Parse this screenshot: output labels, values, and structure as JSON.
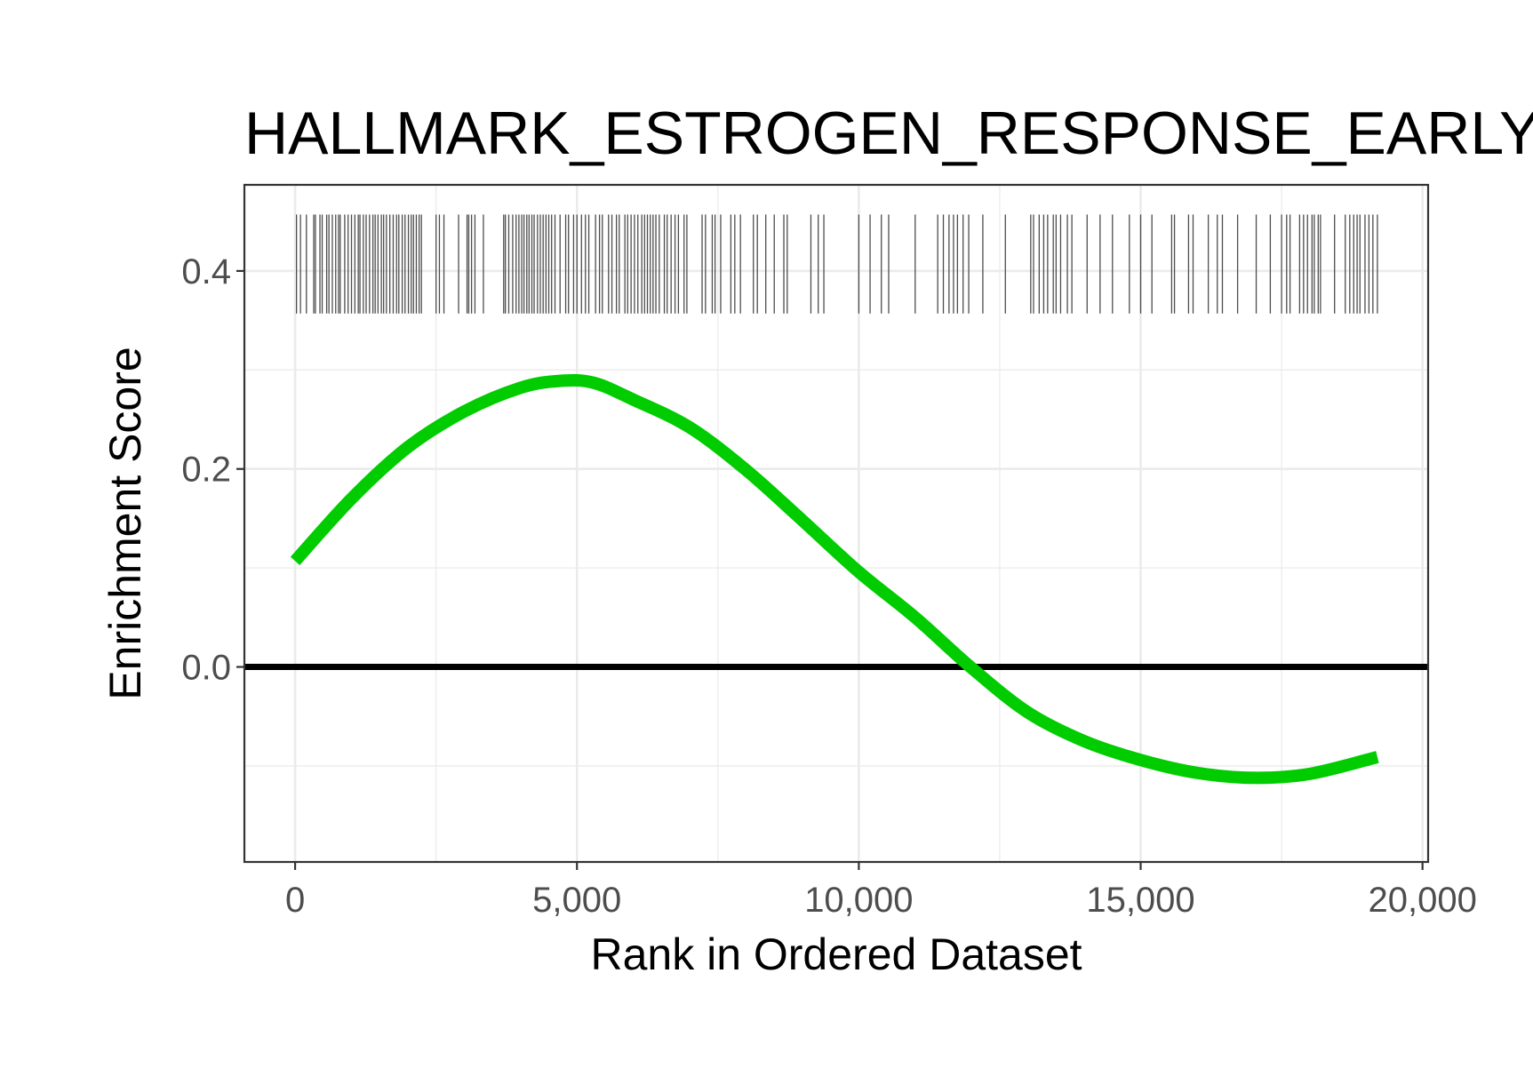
{
  "chart_data": {
    "type": "line",
    "title": "HALLMARK_ESTROGEN_RESPONSE_EARLY",
    "xlabel": "Rank in Ordered Dataset",
    "ylabel": "Enrichment Score",
    "xlim": [
      -900,
      20100
    ],
    "ylim": [
      -0.197,
      0.487
    ],
    "x_ticks": [
      0,
      5000,
      10000,
      15000,
      20000
    ],
    "x_tick_labels": [
      "0",
      "5,000",
      "10,000",
      "15,000",
      "20,000"
    ],
    "y_ticks": [
      0.0,
      0.2,
      0.4
    ],
    "y_tick_labels": [
      "0.0",
      "0.2",
      "0.4"
    ],
    "grid": true,
    "zero_line": 0.0,
    "series": [
      {
        "color": "#00cc00",
        "x": [
          0,
          1000,
          2000,
          3000,
          4000,
          4700,
          5300,
          6000,
          7000,
          8000,
          9000,
          10000,
          11000,
          12000,
          13000,
          14000,
          15000,
          16000,
          17000,
          18000,
          19200
        ],
        "y": [
          0.107,
          0.17,
          0.222,
          0.258,
          0.282,
          0.289,
          0.287,
          0.27,
          0.242,
          0.199,
          0.148,
          0.096,
          0.05,
          -0.001,
          -0.046,
          -0.075,
          -0.094,
          -0.107,
          -0.112,
          -0.108,
          -0.091
        ]
      }
    ],
    "rug": {
      "color": "#4d4d4d",
      "y_range": [
        0.357,
        0.457
      ],
      "positions": [
        25,
        95,
        200,
        330,
        360,
        440,
        480,
        560,
        600,
        660,
        720,
        770,
        800,
        880,
        940,
        1000,
        1060,
        1120,
        1150,
        1210,
        1260,
        1320,
        1380,
        1420,
        1470,
        1530,
        1570,
        1620,
        1680,
        1740,
        1800,
        1840,
        1900,
        1950,
        2010,
        2060,
        2100,
        2150,
        2200,
        2240,
        2500,
        2560,
        2640,
        2900,
        3050,
        3080,
        3130,
        3190,
        3340,
        3700,
        3730,
        3790,
        3860,
        3920,
        3970,
        4020,
        4060,
        4110,
        4150,
        4200,
        4240,
        4300,
        4350,
        4400,
        4450,
        4500,
        4550,
        4610,
        4700,
        4800,
        4850,
        4940,
        5000,
        5080,
        5150,
        5210,
        5330,
        5400,
        5450,
        5560,
        5620,
        5700,
        5750,
        5850,
        5900,
        5960,
        6020,
        6080,
        6150,
        6200,
        6250,
        6300,
        6350,
        6400,
        6460,
        6550,
        6600,
        6670,
        6740,
        6800,
        6900,
        6950,
        7220,
        7280,
        7400,
        7450,
        7550,
        7730,
        7800,
        7900,
        8130,
        8200,
        8350,
        8500,
        8670,
        8730,
        9150,
        9280,
        9380,
        10000,
        10200,
        10400,
        10530,
        11000,
        11400,
        11500,
        11600,
        11680,
        11750,
        11850,
        11950,
        12200,
        12600,
        13050,
        13100,
        13200,
        13280,
        13350,
        13450,
        13500,
        13580,
        13700,
        13780,
        14050,
        14280,
        14500,
        14800,
        15000,
        15200,
        15550,
        15600,
        15850,
        15930,
        16200,
        16360,
        16450,
        16720,
        17050,
        17300,
        17500,
        17590,
        17650,
        17820,
        17890,
        17960,
        18040,
        18080,
        18150,
        18190,
        18440,
        18630,
        18710,
        18780,
        18840,
        18890,
        18980,
        19050,
        19120,
        19200
      ]
    }
  }
}
